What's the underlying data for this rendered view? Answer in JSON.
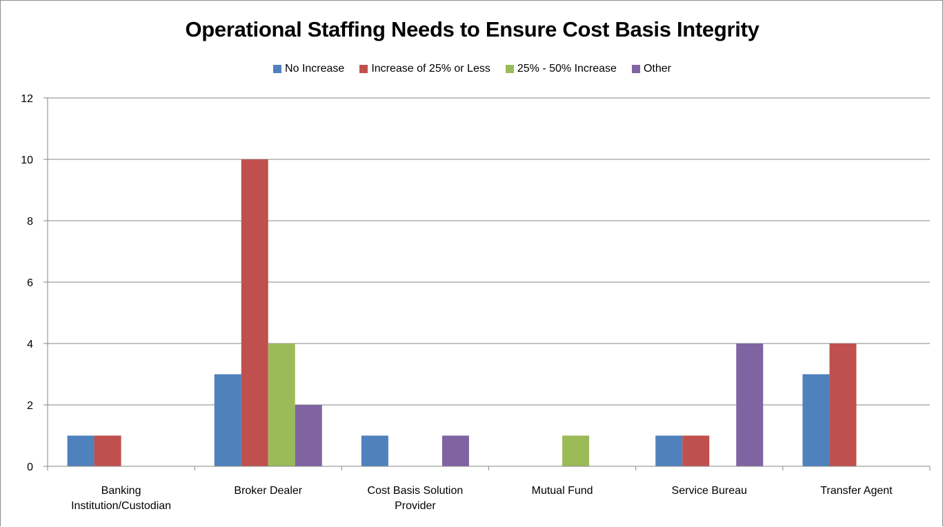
{
  "chart_data": {
    "type": "bar",
    "title": "Operational Staffing Needs to Ensure Cost Basis Integrity",
    "categories": [
      [
        "Banking",
        "Institution/Custodian"
      ],
      [
        "Broker Dealer"
      ],
      [
        "Cost Basis Solution",
        "Provider"
      ],
      [
        "Mutual Fund"
      ],
      [
        "Service Bureau"
      ],
      [
        "Transfer Agent"
      ]
    ],
    "series": [
      {
        "name": "No Increase",
        "color": "#4f81bd",
        "values": [
          1,
          3,
          1,
          0,
          1,
          3
        ]
      },
      {
        "name": "Increase of 25% or Less",
        "color": "#c0504d",
        "values": [
          1,
          10,
          0,
          0,
          1,
          4
        ]
      },
      {
        "name": "25% - 50% Increase",
        "color": "#9bbb59",
        "values": [
          0,
          4,
          0,
          1,
          0,
          0
        ]
      },
      {
        "name": "Other",
        "color": "#8064a2",
        "values": [
          0,
          2,
          1,
          0,
          4,
          0
        ]
      }
    ],
    "yticks": [
      "0",
      "2",
      "4",
      "6",
      "8",
      "10",
      "12"
    ],
    "ylim": [
      0,
      12
    ],
    "grid": true,
    "legend_position": "top"
  }
}
